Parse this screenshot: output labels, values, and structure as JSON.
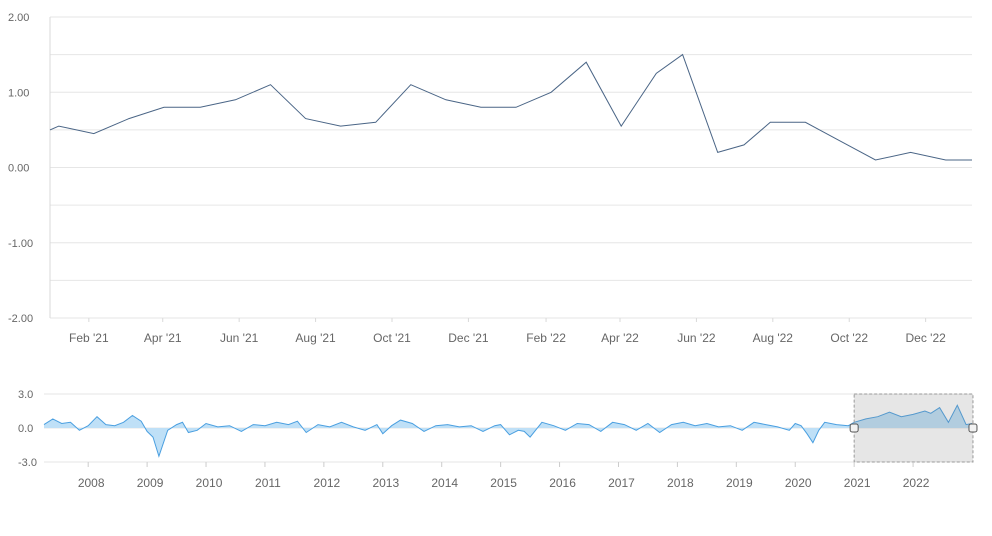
{
  "chart_data": [
    {
      "type": "line",
      "title": "",
      "xlabel": "",
      "ylabel": "",
      "ylim": [
        -2,
        2
      ],
      "y_ticks": [
        "2.00",
        "1.00",
        "0.00",
        "-1.00",
        "-2.00"
      ],
      "x_ticks": [
        "Feb '21",
        "Apr '21",
        "Jun '21",
        "Aug '21",
        "Oct '21",
        "Dec '21",
        "Feb '22",
        "Apr '22",
        "Jun '22",
        "Aug '22",
        "Oct '22",
        "Dec '22"
      ],
      "grid": true,
      "series": [
        {
          "color": "#4a6586",
          "x": [
            "2021-01-01",
            "2021-01-08",
            "2021-02-05",
            "2021-03-05",
            "2021-04-02",
            "2021-05-01",
            "2021-05-29",
            "2021-06-26",
            "2021-07-24",
            "2021-08-21",
            "2021-09-18",
            "2021-10-16",
            "2021-11-13",
            "2021-12-11",
            "2022-01-08",
            "2022-02-05",
            "2022-03-05",
            "2022-04-02",
            "2022-04-30",
            "2022-05-21",
            "2022-06-18",
            "2022-07-09",
            "2022-07-30",
            "2022-08-27",
            "2022-09-24",
            "2022-10-22",
            "2022-11-19",
            "2022-12-17",
            "2023-01-07"
          ],
          "y": [
            0.5,
            0.55,
            0.45,
            0.65,
            0.8,
            0.8,
            0.9,
            1.1,
            0.65,
            0.55,
            0.6,
            1.1,
            0.9,
            0.8,
            0.8,
            1.0,
            1.4,
            0.55,
            1.25,
            1.5,
            0.2,
            0.3,
            0.6,
            0.6,
            0.35,
            0.1,
            0.2,
            0.1,
            0.1
          ]
        }
      ]
    },
    {
      "type": "area",
      "role": "navigator",
      "ylim": [
        -3,
        3
      ],
      "y_ticks": [
        "3.0",
        "0.0",
        "-3.0"
      ],
      "x_ticks": [
        "2008",
        "2009",
        "2010",
        "2011",
        "2012",
        "2013",
        "2014",
        "2015",
        "2016",
        "2017",
        "2018",
        "2019",
        "2020",
        "2021",
        "2022"
      ],
      "selected_range": [
        "2021-01-01",
        "2023-01-07"
      ],
      "series": [
        {
          "color": "#4a9fe0",
          "x": [
            2007.25,
            2007.4,
            2007.55,
            2007.7,
            2007.85,
            2008.0,
            2008.15,
            2008.3,
            2008.45,
            2008.6,
            2008.75,
            2008.9,
            2009.0,
            2009.1,
            2009.2,
            2009.35,
            2009.5,
            2009.6,
            2009.7,
            2009.85,
            2010.0,
            2010.2,
            2010.4,
            2010.6,
            2010.8,
            2011.0,
            2011.2,
            2011.4,
            2011.55,
            2011.7,
            2011.9,
            2012.1,
            2012.3,
            2012.5,
            2012.7,
            2012.9,
            2013.0,
            2013.15,
            2013.3,
            2013.5,
            2013.7,
            2013.9,
            2014.1,
            2014.3,
            2014.5,
            2014.7,
            2014.9,
            2015.0,
            2015.15,
            2015.3,
            2015.4,
            2015.5,
            2015.7,
            2015.9,
            2016.1,
            2016.3,
            2016.5,
            2016.7,
            2016.9,
            2017.1,
            2017.3,
            2017.5,
            2017.7,
            2017.9,
            2018.1,
            2018.3,
            2018.5,
            2018.7,
            2018.9,
            2019.1,
            2019.3,
            2019.5,
            2019.7,
            2019.9,
            2020.0,
            2020.1,
            2020.2,
            2020.3,
            2020.4,
            2020.5,
            2020.7,
            2020.9,
            2021.0,
            2021.2,
            2021.4,
            2021.6,
            2021.8,
            2022.0,
            2022.2,
            2022.3,
            2022.45,
            2022.6,
            2022.75,
            2022.9,
            2023.0
          ],
          "y": [
            0.3,
            0.8,
            0.4,
            0.5,
            -0.2,
            0.2,
            1.0,
            0.3,
            0.2,
            0.5,
            1.1,
            0.6,
            -0.3,
            -0.8,
            -2.5,
            -0.2,
            0.3,
            0.5,
            -0.4,
            -0.2,
            0.4,
            0.1,
            0.2,
            -0.3,
            0.3,
            0.2,
            0.5,
            0.3,
            0.6,
            -0.4,
            0.3,
            0.1,
            0.5,
            0.1,
            -0.2,
            0.3,
            -0.5,
            0.2,
            0.7,
            0.4,
            -0.3,
            0.2,
            0.3,
            0.1,
            0.2,
            -0.3,
            0.2,
            0.3,
            -0.6,
            -0.2,
            -0.3,
            -0.8,
            0.5,
            0.2,
            -0.2,
            0.4,
            0.3,
            -0.3,
            0.5,
            0.3,
            -0.2,
            0.4,
            -0.4,
            0.3,
            0.5,
            0.2,
            0.4,
            0.1,
            0.2,
            -0.2,
            0.5,
            0.3,
            0.1,
            -0.2,
            0.4,
            0.2,
            -0.5,
            -1.3,
            -0.2,
            0.5,
            0.3,
            0.2,
            0.5,
            0.8,
            1.0,
            1.4,
            1.0,
            1.2,
            1.5,
            1.3,
            1.8,
            0.5,
            2.0,
            0.3,
            0.4
          ]
        }
      ]
    }
  ]
}
